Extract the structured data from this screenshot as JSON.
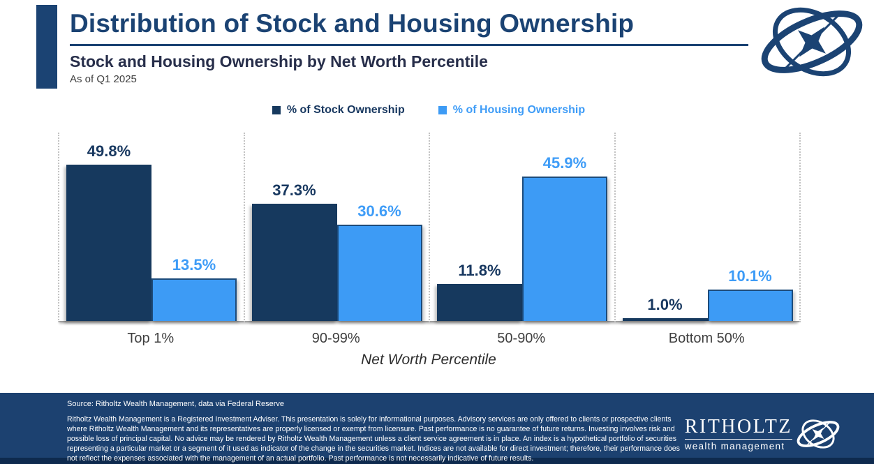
{
  "header": {
    "title": "Distribution of Stock and Housing Ownership",
    "subtitle": "Stock and Housing Ownership by Net Worth Percentile",
    "as_of": "As of Q1 2025"
  },
  "legend": {
    "items": [
      {
        "label": "% of Stock Ownership",
        "color": "#16395e"
      },
      {
        "label": "% of Housing Ownership",
        "color": "#3d9bf5"
      }
    ]
  },
  "chart_data": {
    "type": "bar",
    "categories": [
      "Top 1%",
      "90-99%",
      "50-90%",
      "Bottom 50%"
    ],
    "series": [
      {
        "name": "% of Stock Ownership",
        "color": "#16395e",
        "label_color": "#17375f",
        "values": [
          49.8,
          37.3,
          11.8,
          1.0
        ],
        "labels": [
          "49.8%",
          "37.3%",
          "11.8%",
          "1.0%"
        ]
      },
      {
        "name": "% of Housing Ownership",
        "color": "#3d9bf5",
        "label_color": "#3e9cf7",
        "values": [
          13.5,
          30.6,
          45.9,
          10.1
        ],
        "labels": [
          "13.5%",
          "30.6%",
          "45.9%",
          "10.1%"
        ]
      }
    ],
    "title": "Stock and Housing Ownership by Net Worth Percentile",
    "xlabel": "Net Worth Percentile",
    "ylabel": "",
    "ylim": [
      0,
      60
    ],
    "grid": "vertical dotted group separators",
    "legend_position": "top-center"
  },
  "footer": {
    "source": "Source: Ritholtz Wealth Management, data via Federal Reserve",
    "disclaimer": "Ritholtz Wealth Management is a Registered Investment Adviser. This presentation is solely for informational purposes. Advisory services are only offered to clients or prospective clients where Ritholtz Wealth Management and its representatives are properly licensed or exempt from licensure. Past performance is no guarantee of future returns. Investing involves risk and possible loss of principal capital. No advice may be rendered by Ritholtz Wealth Management unless a client service agreement is in place. An index is a hypothetical portfolio of securities representing a particular market or a segment of it used as indicator of the change in the securities market. Indices are not available for direct investment; therefore, their performance does not reflect the expenses associated with the management of an actual portfolio. Past performance is not necessarily indicative of future results.",
    "brand_name": "RITHOLTZ",
    "brand_sub": "wealth management"
  },
  "colors": {
    "navy": "#1b4373",
    "bar_stock": "#16395e",
    "bar_housing": "#3d9bf5",
    "footer_bg": "#1c4170",
    "footer_stripe": "#0e2a4e"
  }
}
